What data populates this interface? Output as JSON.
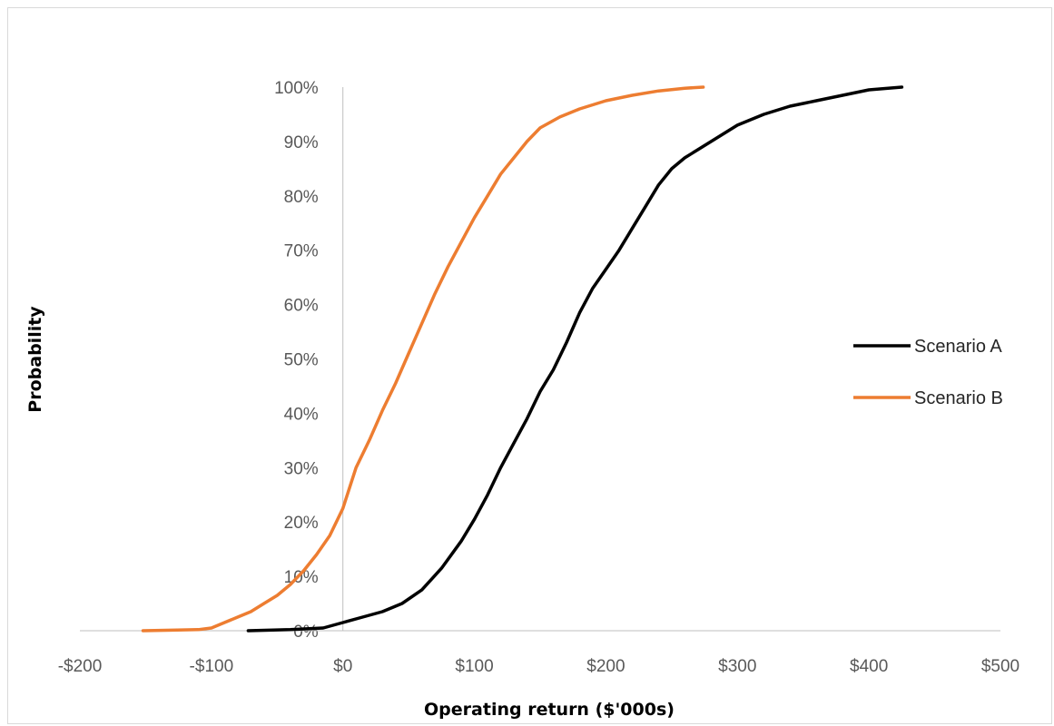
{
  "chart_data": {
    "type": "line",
    "title": "",
    "xlabel": "Operating return ($'000s)",
    "ylabel": "Probability",
    "xlim": [
      -200,
      500
    ],
    "ylim": [
      0,
      1
    ],
    "x_ticks": [
      -200,
      -100,
      0,
      100,
      200,
      300,
      400,
      500
    ],
    "x_tick_labels": [
      "-$200",
      "-$100",
      "$0",
      "$100",
      "$200",
      "$300",
      "$400",
      "$500"
    ],
    "y_ticks": [
      0,
      0.1,
      0.2,
      0.3,
      0.4,
      0.5,
      0.6,
      0.7,
      0.8,
      0.9,
      1.0
    ],
    "y_tick_labels": [
      "0%",
      "10%",
      "20%",
      "30%",
      "40%",
      "50%",
      "60%",
      "70%",
      "80%",
      "90%",
      "100%"
    ],
    "grid": false,
    "legend_position": "right",
    "series": [
      {
        "name": "Scenario A",
        "color": "#000000",
        "points": [
          [
            -72,
            0
          ],
          [
            -40,
            0.002
          ],
          [
            -15,
            0.005
          ],
          [
            0,
            0.015
          ],
          [
            15,
            0.025
          ],
          [
            30,
            0.035
          ],
          [
            45,
            0.05
          ],
          [
            60,
            0.075
          ],
          [
            75,
            0.115
          ],
          [
            90,
            0.165
          ],
          [
            100,
            0.205
          ],
          [
            110,
            0.25
          ],
          [
            120,
            0.3
          ],
          [
            130,
            0.345
          ],
          [
            140,
            0.39
          ],
          [
            150,
            0.44
          ],
          [
            160,
            0.48
          ],
          [
            170,
            0.53
          ],
          [
            180,
            0.585
          ],
          [
            190,
            0.63
          ],
          [
            200,
            0.665
          ],
          [
            210,
            0.7
          ],
          [
            220,
            0.74
          ],
          [
            230,
            0.78
          ],
          [
            240,
            0.82
          ],
          [
            250,
            0.85
          ],
          [
            260,
            0.87
          ],
          [
            270,
            0.885
          ],
          [
            280,
            0.9
          ],
          [
            290,
            0.915
          ],
          [
            300,
            0.93
          ],
          [
            320,
            0.95
          ],
          [
            340,
            0.965
          ],
          [
            360,
            0.975
          ],
          [
            380,
            0.985
          ],
          [
            400,
            0.995
          ],
          [
            425,
            1.0
          ]
        ]
      },
      {
        "name": "Scenario B",
        "color": "#ed7d31",
        "points": [
          [
            -152,
            0
          ],
          [
            -130,
            0.001
          ],
          [
            -110,
            0.002
          ],
          [
            -100,
            0.005
          ],
          [
            -90,
            0.015
          ],
          [
            -80,
            0.025
          ],
          [
            -70,
            0.035
          ],
          [
            -60,
            0.05
          ],
          [
            -50,
            0.065
          ],
          [
            -40,
            0.085
          ],
          [
            -30,
            0.11
          ],
          [
            -20,
            0.14
          ],
          [
            -10,
            0.175
          ],
          [
            0,
            0.225
          ],
          [
            10,
            0.3
          ],
          [
            20,
            0.35
          ],
          [
            30,
            0.405
          ],
          [
            40,
            0.455
          ],
          [
            50,
            0.51
          ],
          [
            60,
            0.565
          ],
          [
            70,
            0.62
          ],
          [
            80,
            0.67
          ],
          [
            90,
            0.715
          ],
          [
            100,
            0.76
          ],
          [
            110,
            0.8
          ],
          [
            120,
            0.84
          ],
          [
            130,
            0.87
          ],
          [
            140,
            0.9
          ],
          [
            150,
            0.925
          ],
          [
            165,
            0.945
          ],
          [
            180,
            0.96
          ],
          [
            200,
            0.975
          ],
          [
            220,
            0.985
          ],
          [
            240,
            0.993
          ],
          [
            260,
            0.998
          ],
          [
            274,
            1.0
          ]
        ]
      }
    ]
  }
}
